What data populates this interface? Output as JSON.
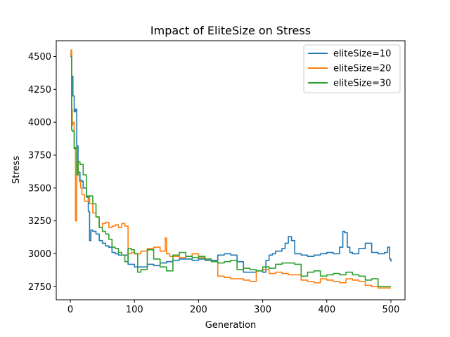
{
  "chart_data": {
    "type": "line",
    "title": "Impact of EliteSize on Stress",
    "xlabel": "Generation",
    "ylabel": "Stress",
    "xlim": [
      -22,
      522
    ],
    "ylim": [
      2650,
      4620
    ],
    "xticks": [
      0,
      100,
      200,
      300,
      400,
      500
    ],
    "yticks": [
      2750,
      3000,
      3250,
      3500,
      3750,
      4000,
      4250,
      4500
    ],
    "grid": false,
    "legend_position": "top-right",
    "series": [
      {
        "name": "eliteSize=10",
        "color": "#1f77b4",
        "x": [
          0,
          2,
          4,
          6,
          8,
          10,
          12,
          15,
          18,
          20,
          22,
          25,
          28,
          30,
          32,
          35,
          40,
          45,
          50,
          55,
          60,
          65,
          70,
          75,
          80,
          90,
          100,
          110,
          120,
          130,
          140,
          150,
          160,
          170,
          180,
          190,
          200,
          210,
          220,
          230,
          240,
          250,
          260,
          270,
          280,
          290,
          300,
          305,
          310,
          315,
          320,
          330,
          335,
          340,
          345,
          350,
          360,
          370,
          380,
          390,
          400,
          410,
          420,
          425,
          428,
          432,
          436,
          440,
          450,
          460,
          470,
          480,
          490,
          495,
          498,
          500
        ],
        "values": [
          4510,
          4350,
          4200,
          4080,
          4100,
          3820,
          3620,
          3560,
          3550,
          3500,
          3500,
          3430,
          3320,
          3100,
          3180,
          3170,
          3150,
          3100,
          3080,
          3060,
          3050,
          3010,
          3000,
          2990,
          2990,
          2920,
          2900,
          2900,
          2920,
          2910,
          2930,
          2940,
          2950,
          2960,
          2960,
          2950,
          2960,
          2950,
          2950,
          2990,
          3000,
          2990,
          2940,
          2860,
          2860,
          2870,
          2860,
          2950,
          2990,
          3000,
          3020,
          3040,
          3080,
          3130,
          3100,
          3000,
          2990,
          2980,
          2990,
          3000,
          3010,
          3000,
          3050,
          3170,
          3160,
          3050,
          3010,
          3000,
          3040,
          3080,
          3010,
          3000,
          3010,
          3050,
          2960,
          2940
        ]
      },
      {
        "name": "eliteSize=20",
        "color": "#ff7f0e",
        "x": [
          0,
          1,
          2,
          3,
          4,
          6,
          8,
          10,
          12,
          14,
          16,
          18,
          20,
          22,
          25,
          28,
          30,
          35,
          40,
          45,
          50,
          55,
          60,
          65,
          70,
          75,
          80,
          85,
          90,
          95,
          100,
          110,
          120,
          130,
          140,
          148,
          150,
          155,
          160,
          170,
          180,
          190,
          200,
          210,
          220,
          230,
          240,
          250,
          260,
          270,
          280,
          290,
          300,
          310,
          320,
          330,
          340,
          350,
          360,
          370,
          380,
          390,
          400,
          410,
          420,
          430,
          440,
          450,
          460,
          470,
          480,
          490,
          500
        ],
        "values": [
          4500,
          4550,
          4100,
          3980,
          4000,
          3800,
          3250,
          3700,
          3600,
          3550,
          3500,
          3450,
          3450,
          3400,
          3400,
          3420,
          3380,
          3310,
          3280,
          3200,
          3230,
          3240,
          3200,
          3210,
          3220,
          3200,
          3230,
          3210,
          3000,
          3010,
          3000,
          3020,
          3040,
          3050,
          3020,
          3120,
          3000,
          2980,
          2980,
          2970,
          2980,
          3000,
          2970,
          2960,
          2940,
          2830,
          2820,
          2810,
          2810,
          2800,
          2790,
          2870,
          2880,
          2850,
          2860,
          2850,
          2840,
          2840,
          2800,
          2790,
          2780,
          2810,
          2800,
          2790,
          2780,
          2810,
          2800,
          2790,
          2760,
          2750,
          2740,
          2740,
          2740
        ]
      },
      {
        "name": "eliteSize=30",
        "color": "#2ca02c",
        "x": [
          0,
          2,
          4,
          6,
          8,
          10,
          12,
          15,
          20,
          25,
          28,
          30,
          35,
          40,
          45,
          50,
          55,
          60,
          65,
          70,
          75,
          80,
          85,
          90,
          95,
          100,
          105,
          110,
          120,
          130,
          140,
          150,
          160,
          170,
          180,
          190,
          200,
          210,
          220,
          230,
          240,
          250,
          260,
          270,
          280,
          290,
          300,
          310,
          320,
          330,
          340,
          350,
          360,
          370,
          380,
          390,
          400,
          410,
          420,
          430,
          440,
          450,
          460,
          470,
          480,
          490,
          500
        ],
        "values": [
          4500,
          3940,
          3930,
          3800,
          3810,
          3600,
          3700,
          3680,
          3600,
          3440,
          3430,
          3440,
          3380,
          3280,
          3200,
          3170,
          3150,
          3110,
          3050,
          3040,
          3010,
          2990,
          2940,
          3040,
          3030,
          3000,
          2860,
          2880,
          3030,
          2960,
          2900,
          2870,
          2990,
          3010,
          2980,
          2970,
          2980,
          2960,
          2940,
          2930,
          2940,
          2950,
          2880,
          2890,
          2880,
          2870,
          2900,
          2890,
          2920,
          2930,
          2930,
          2920,
          2830,
          2860,
          2870,
          2830,
          2840,
          2850,
          2840,
          2860,
          2840,
          2830,
          2800,
          2810,
          2750,
          2750,
          2750
        ]
      }
    ]
  }
}
